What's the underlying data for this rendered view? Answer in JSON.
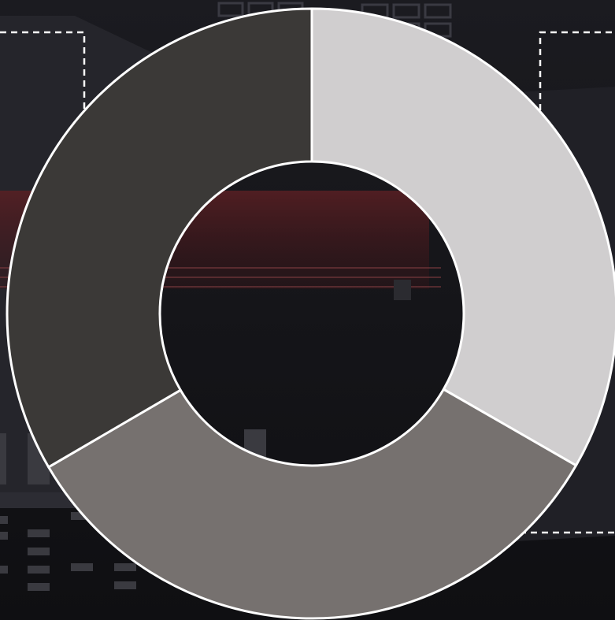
{
  "chart_data": {
    "type": "pie",
    "donut": true,
    "title": "",
    "categories": [
      "",
      "",
      ""
    ],
    "values": [
      33.3,
      33.3,
      33.4
    ],
    "colors": [
      "#d0cecf",
      "#76716f",
      "#3b3937"
    ],
    "border_color": "#ffffff",
    "legend": "none",
    "start_angle_deg": 0,
    "direction": "clockwise"
  },
  "background": {
    "base_color": "#141418",
    "scene_accent": "#5a1f23",
    "callout_line_color": "#ffffff"
  }
}
